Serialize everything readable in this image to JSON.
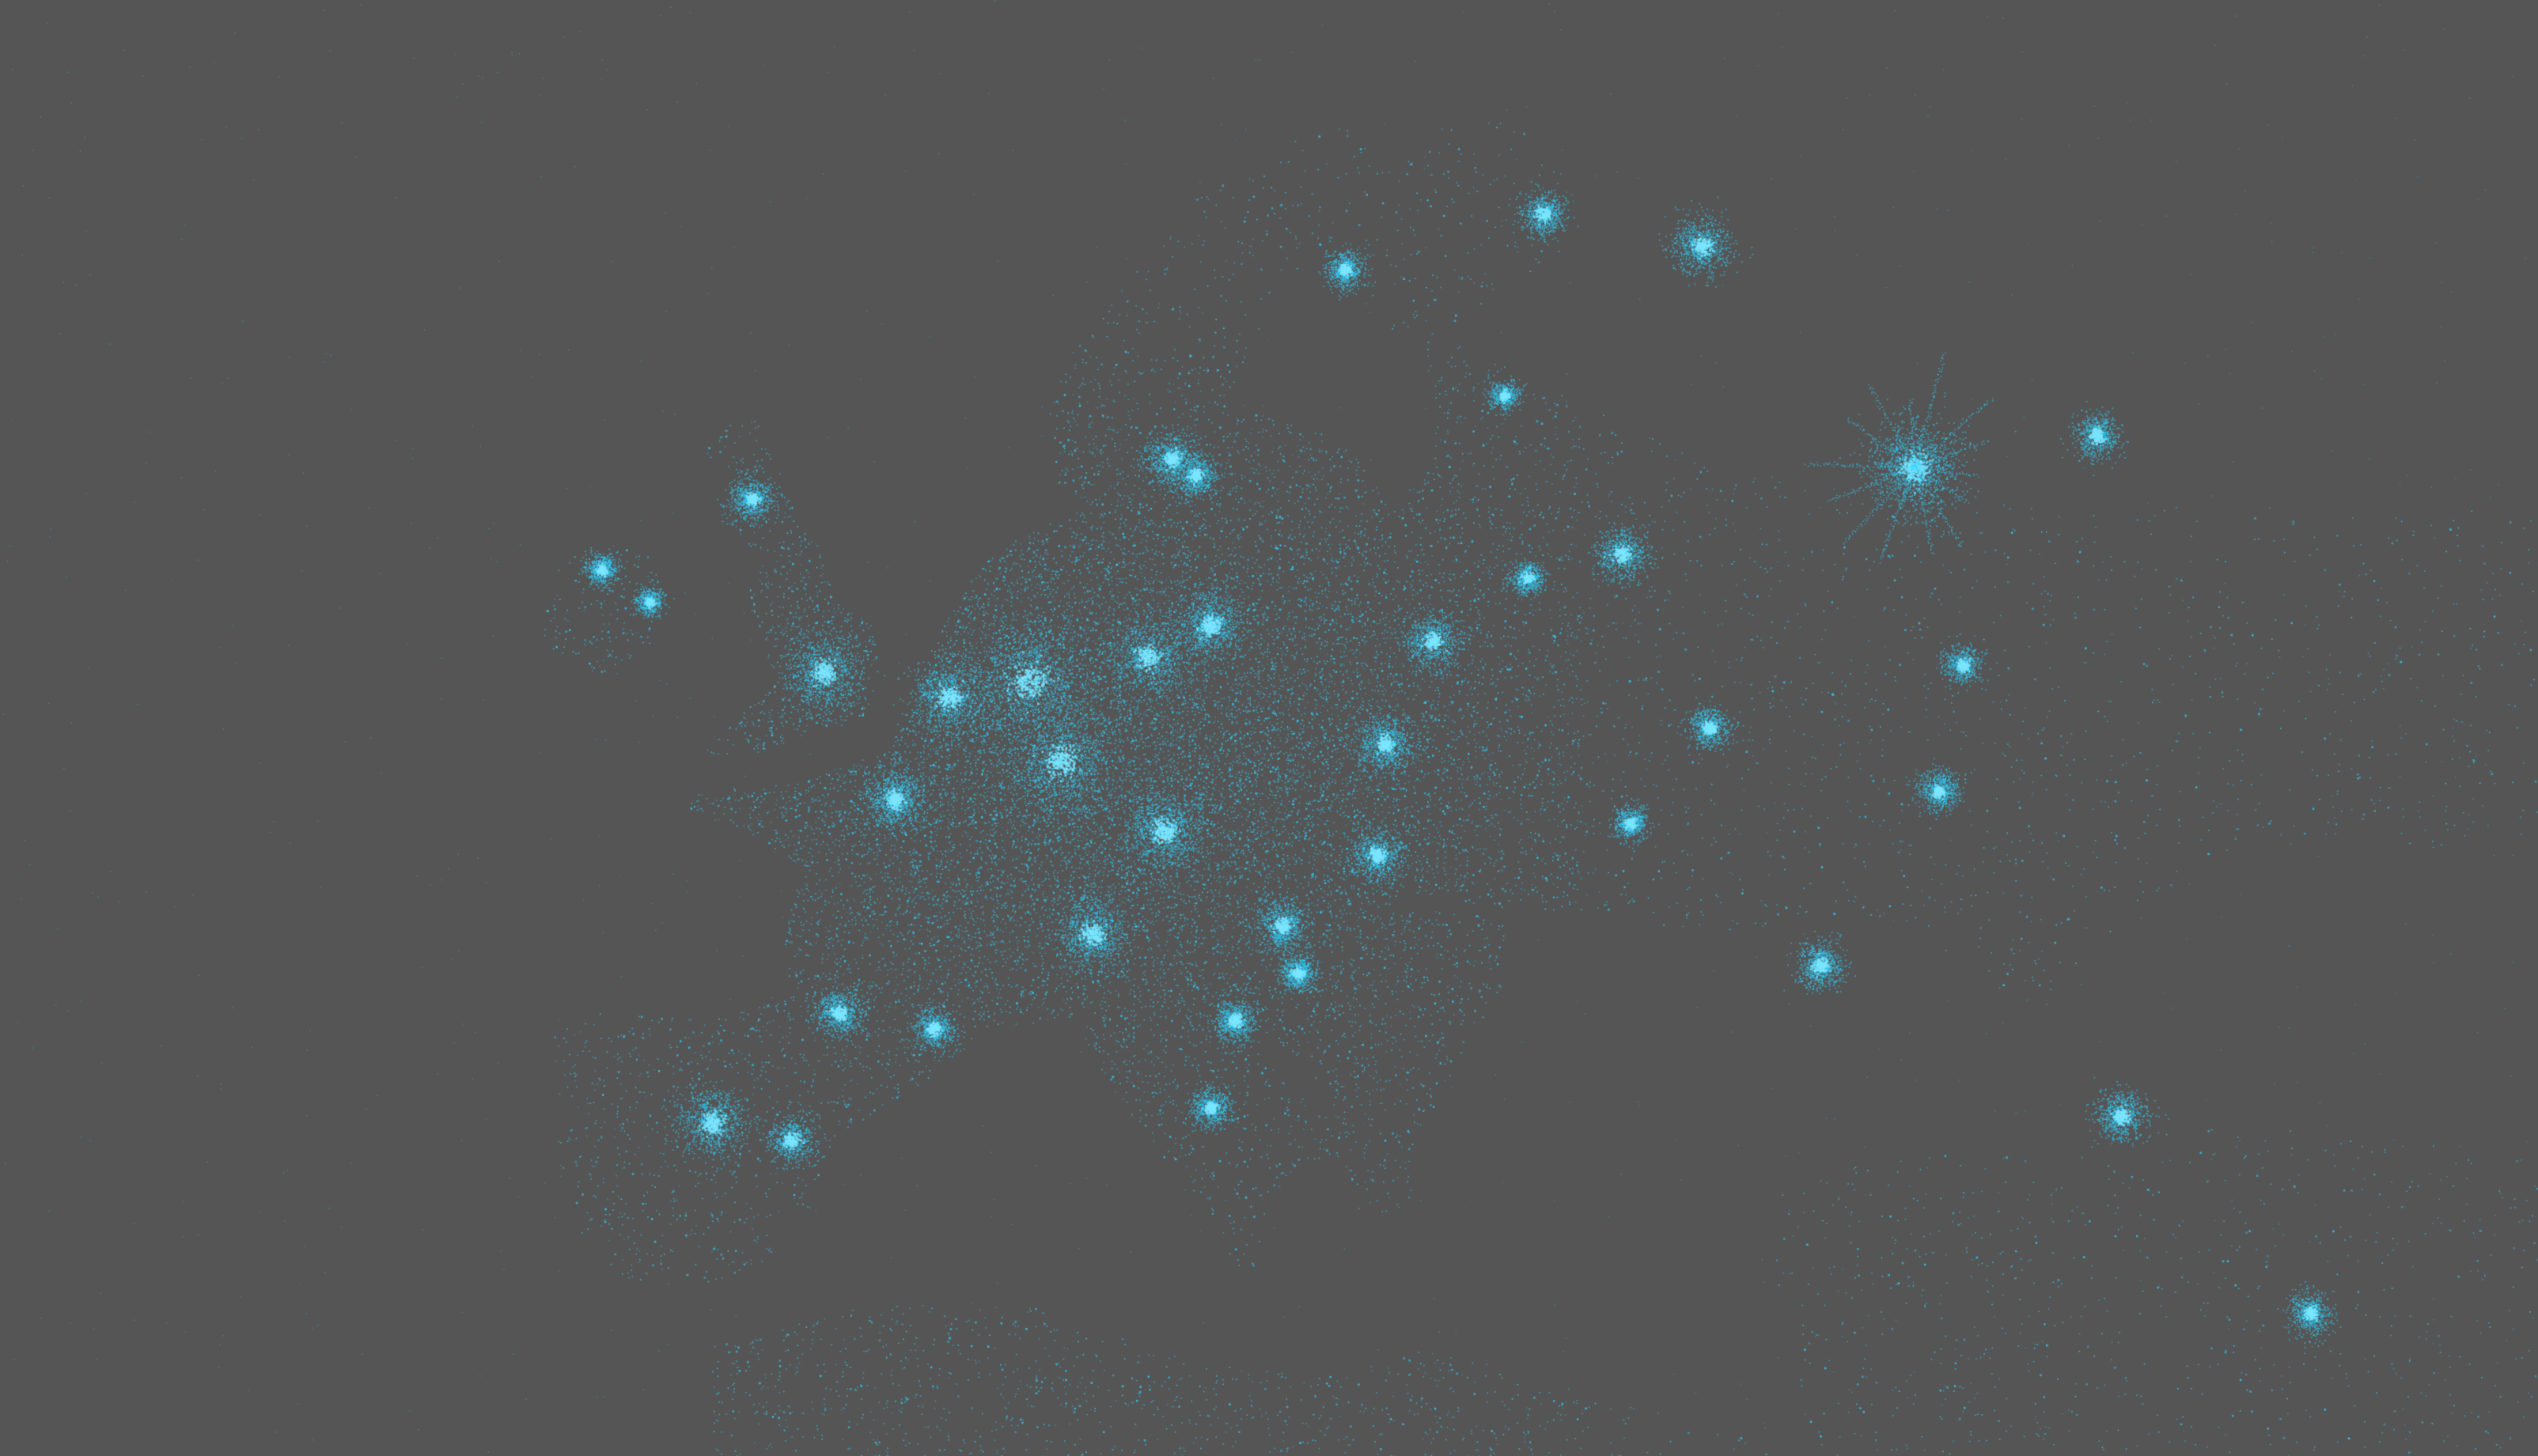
{
  "map": {
    "background_color": "#555555",
    "point_color": "#2fd2ff",
    "glow_color": "#7ae6ff",
    "style": "density dot map of Europe on dark gray background"
  }
}
